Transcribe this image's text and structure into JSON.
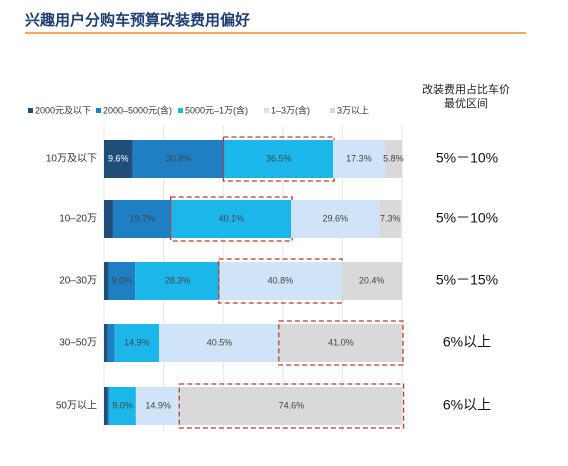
{
  "title": "兴趣用户分购车预算改装费用偏好",
  "right_header": [
    "改装费用占比车价",
    "最优区间"
  ],
  "colors": {
    "title": "#1f3f73",
    "rule": "#f3a95e",
    "series": [
      "#1f4e79",
      "#1f7fc3",
      "#1cb7ea",
      "#cfe4f7",
      "#d9d9d9"
    ],
    "highlight": "#c0392b"
  },
  "chart_data": {
    "type": "bar",
    "stacked": true,
    "orientation": "horizontal",
    "percent": true,
    "xlim": [
      0,
      100
    ],
    "legend_position": "top",
    "categories": [
      "10万及以下",
      "10–20万",
      "20–30万",
      "30–50万",
      "50万以上"
    ],
    "series": [
      {
        "name": "2000元及以下",
        "values": [
          9.6,
          3.0,
          1.5,
          1.2,
          1.2
        ],
        "labels": [
          "9.6%",
          "",
          "",
          "",
          ""
        ]
      },
      {
        "name": "2000–5000元(含)",
        "values": [
          30.8,
          19.7,
          9.0,
          2.4,
          0.5
        ],
        "labels": [
          "30.8%",
          "19.7%",
          "9.0%",
          "",
          ""
        ]
      },
      {
        "name": "5000元–1万(含)",
        "values": [
          36.5,
          40.1,
          28.3,
          14.9,
          9.0
        ],
        "labels": [
          "36.5%",
          "40.1%",
          "28.3%",
          "14.9%",
          "9.0%"
        ]
      },
      {
        "name": "1–3万(含)",
        "values": [
          17.3,
          29.6,
          40.8,
          40.5,
          14.9
        ],
        "labels": [
          "17.3%",
          "29.6%",
          "40.8%",
          "40.5%",
          "14.9%"
        ]
      },
      {
        "name": "3万以上",
        "values": [
          5.8,
          7.3,
          20.4,
          41.0,
          74.6
        ],
        "labels": [
          "5.8%",
          "7.3%",
          "20.4%",
          "41.0%",
          "74.6%"
        ]
      }
    ],
    "highlighted_segment": [
      2,
      2,
      3,
      4,
      4
    ],
    "optimal_ranges": [
      "5%－10%",
      "5%－10%",
      "5%－15%",
      "6%以上",
      "6%以上"
    ]
  }
}
